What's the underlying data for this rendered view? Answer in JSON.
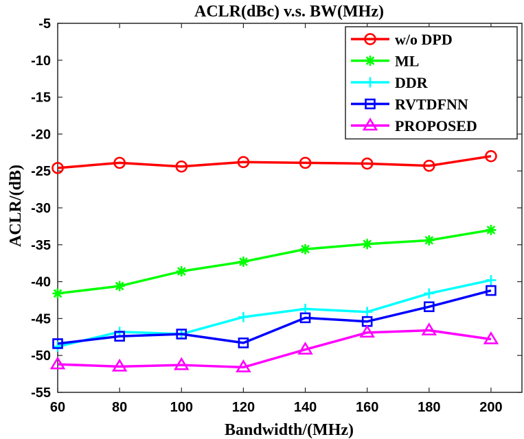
{
  "chart_data": {
    "type": "line",
    "title": "ACLR(dBc) v.s. BW(MHz)",
    "xlabel": "Bandwidth/(MHz)",
    "ylabel": "ACLR/(dB)",
    "xlim": [
      60,
      210
    ],
    "ylim": [
      -55,
      -5
    ],
    "xticks": [
      60,
      80,
      100,
      120,
      140,
      160,
      180,
      200
    ],
    "yticks": [
      -55,
      -50,
      -45,
      -40,
      -35,
      -30,
      -25,
      -20,
      -15,
      -10,
      -5
    ],
    "grid": false,
    "legend_position": "top-right",
    "x": [
      60,
      80,
      100,
      120,
      140,
      160,
      180,
      200
    ],
    "series": [
      {
        "name": "w/o DPD",
        "color": "#ff0000",
        "marker": "circle",
        "values": [
          -24.6,
          -23.9,
          -24.4,
          -23.8,
          -23.9,
          -24.0,
          -24.3,
          -23.0
        ]
      },
      {
        "name": "ML",
        "color": "#00ff00",
        "marker": "asterisk",
        "values": [
          -41.6,
          -40.6,
          -38.6,
          -37.3,
          -35.6,
          -34.9,
          -34.4,
          -33.0
        ]
      },
      {
        "name": "DDR",
        "color": "#00ffff",
        "marker": "plus",
        "values": [
          -48.8,
          -46.8,
          -47.1,
          -44.8,
          -43.7,
          -44.1,
          -41.6,
          -39.8
        ]
      },
      {
        "name": "RVTDFNN",
        "color": "#0000ff",
        "marker": "square",
        "values": [
          -48.4,
          -47.4,
          -47.1,
          -48.3,
          -44.9,
          -45.4,
          -43.4,
          -41.2
        ]
      },
      {
        "name": "PROPOSED",
        "color": "#ff00ff",
        "marker": "triangle",
        "values": [
          -51.2,
          -51.5,
          -51.3,
          -51.6,
          -49.2,
          -46.9,
          -46.6,
          -47.8
        ]
      }
    ]
  }
}
